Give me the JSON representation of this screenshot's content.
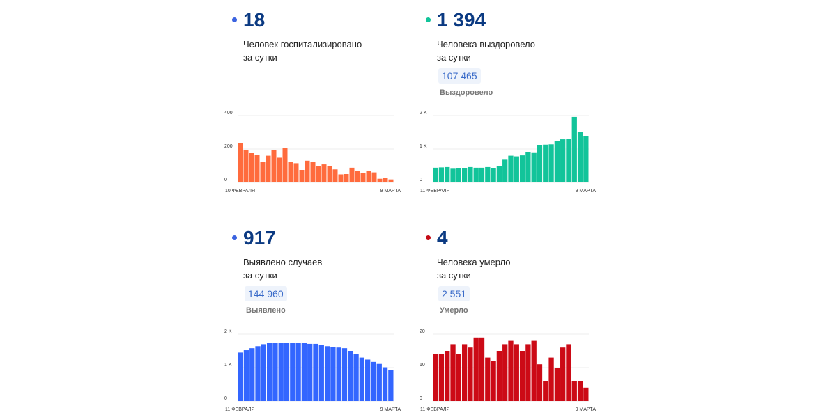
{
  "cards": [
    {
      "value": "18",
      "label1": "Человек госпитализировано",
      "label2": "за сутки",
      "dot_color": "#3b63e0"
    },
    {
      "value": "1 394",
      "label1": "Человека выздоровело",
      "label2": "за сутки",
      "total": "107 465",
      "total_label": "Выздоровело",
      "dot_color": "#12c49a"
    },
    {
      "value": "917",
      "label1": "Выявлено случаев",
      "label2": "за сутки",
      "total": "144 960",
      "total_label": "Выявлено",
      "dot_color": "#3b63e0"
    },
    {
      "value": "4",
      "label1": "Человека умерло",
      "label2": "за сутки",
      "total": "2 551",
      "total_label": "Умерло",
      "dot_color": "#c40c16"
    }
  ],
  "chart_data": [
    {
      "type": "bar",
      "color": "#ff6b3d",
      "ylim": [
        0,
        400
      ],
      "yticks": [
        "0",
        "200",
        "400"
      ],
      "ytick_values": [
        0,
        200,
        400
      ],
      "x_start": "10 ФЕВРАЛЯ",
      "x_end": "9 МАРТА",
      "values": [
        235,
        195,
        175,
        165,
        125,
        160,
        195,
        148,
        205,
        125,
        115,
        75,
        130,
        122,
        100,
        108,
        100,
        78,
        48,
        50,
        88,
        70,
        57,
        68,
        60,
        22,
        25,
        18
      ]
    },
    {
      "type": "bar",
      "color": "#12c49a",
      "ylim": [
        0,
        2000
      ],
      "yticks": [
        "0",
        "1 K",
        "2 K"
      ],
      "ytick_values": [
        0,
        1000,
        2000
      ],
      "x_start": "11 ФЕВРАЛЯ",
      "x_end": "9 МАРТА",
      "values": [
        440,
        450,
        460,
        410,
        430,
        430,
        460,
        440,
        440,
        460,
        420,
        490,
        680,
        800,
        780,
        810,
        900,
        880,
        1110,
        1130,
        1140,
        1250,
        1290,
        1300,
        1960,
        1520,
        1394
      ]
    },
    {
      "type": "bar",
      "color": "#3366ff",
      "ylim": [
        0,
        2000
      ],
      "yticks": [
        "0",
        "1 K",
        "2 K"
      ],
      "ytick_values": [
        0,
        1000,
        2000
      ],
      "x_start": "11 ФЕВРАЛЯ",
      "x_end": "9 МАРТА",
      "values": [
        1450,
        1520,
        1580,
        1640,
        1700,
        1750,
        1750,
        1740,
        1740,
        1740,
        1750,
        1730,
        1710,
        1710,
        1670,
        1640,
        1620,
        1600,
        1580,
        1500,
        1400,
        1300,
        1240,
        1170,
        1110,
        1010,
        917
      ]
    },
    {
      "type": "bar",
      "color": "#cc0a16",
      "ylim": [
        0,
        20
      ],
      "yticks": [
        "0",
        "10",
        "20"
      ],
      "ytick_values": [
        0,
        10,
        20
      ],
      "x_start": "11 ФЕВРАЛЯ",
      "x_end": "9 МАРТА",
      "values": [
        14,
        14,
        15,
        17,
        14,
        17,
        16,
        19,
        19,
        13,
        12,
        15,
        17,
        18,
        17,
        15,
        17,
        18,
        11,
        6,
        13,
        10,
        16,
        17,
        6,
        6,
        4
      ]
    }
  ]
}
